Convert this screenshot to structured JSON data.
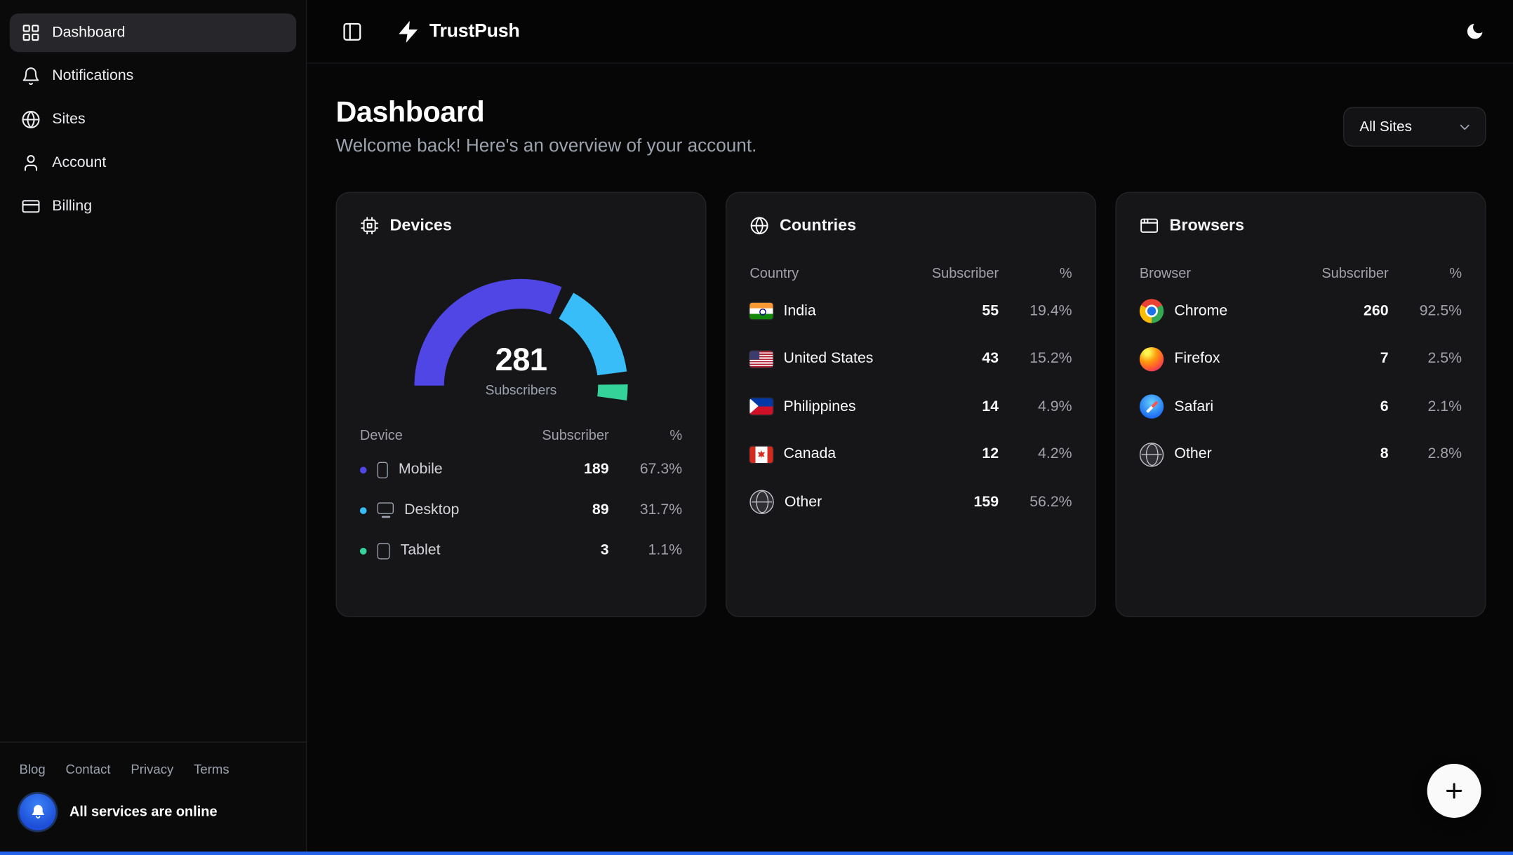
{
  "topbar": {
    "brand": "TrustPush"
  },
  "sidebar": {
    "items": [
      {
        "label": "Dashboard",
        "icon": "dashboard-grid-icon",
        "active": true
      },
      {
        "label": "Notifications",
        "icon": "bell-icon",
        "active": false
      },
      {
        "label": "Sites",
        "icon": "globe-icon",
        "active": false
      },
      {
        "label": "Account",
        "icon": "user-icon",
        "active": false
      },
      {
        "label": "Billing",
        "icon": "credit-card-icon",
        "active": false
      }
    ],
    "footer_links": [
      {
        "label": "Blog"
      },
      {
        "label": "Contact"
      },
      {
        "label": "Privacy"
      },
      {
        "label": "Terms"
      }
    ],
    "status": {
      "text": "All services are online",
      "icon": "bell-badge-icon"
    }
  },
  "page": {
    "title": "Dashboard",
    "subtitle": "Welcome back! Here's an overview of your account.",
    "site_filter": {
      "value": "All Sites",
      "icon": "chevron-down-icon"
    }
  },
  "cards": {
    "devices": {
      "title": "Devices",
      "icon": "cpu-icon",
      "headers": {
        "name": "Device",
        "subscribers": "Subscriber",
        "percent": "%"
      },
      "rows": [
        {
          "name": "Mobile",
          "subscribers": "189",
          "percent": "67.3%",
          "color": "#4f46e5",
          "icon": "dev-mobile"
        },
        {
          "name": "Desktop",
          "subscribers": "89",
          "percent": "31.7%",
          "color": "#38bdf8",
          "icon": "dev-monitor"
        },
        {
          "name": "Tablet",
          "subscribers": "3",
          "percent": "1.1%",
          "color": "#34d399",
          "icon": "dev-tablet"
        }
      ]
    },
    "countries": {
      "title": "Countries",
      "icon": "globe-icon",
      "headers": {
        "name": "Country",
        "subscribers": "Subscriber",
        "percent": "%"
      },
      "rows": [
        {
          "name": "India",
          "subscribers": "55",
          "percent": "19.4%",
          "icon": "flag-in"
        },
        {
          "name": "United States",
          "subscribers": "43",
          "percent": "15.2%",
          "icon": "flag-us"
        },
        {
          "name": "Philippines",
          "subscribers": "14",
          "percent": "4.9%",
          "icon": "flag-ph"
        },
        {
          "name": "Canada",
          "subscribers": "12",
          "percent": "4.2%",
          "icon": "flag-ca"
        },
        {
          "name": "Other",
          "subscribers": "159",
          "percent": "56.2%",
          "icon": "icon-globe-gray"
        }
      ]
    },
    "browsers": {
      "title": "Browsers",
      "icon": "app-window-icon",
      "headers": {
        "name": "Browser",
        "subscribers": "Subscriber",
        "percent": "%"
      },
      "rows": [
        {
          "name": "Chrome",
          "subscribers": "260",
          "percent": "92.5%",
          "icon": "br-chrome"
        },
        {
          "name": "Firefox",
          "subscribers": "7",
          "percent": "2.5%",
          "icon": "br-firefox"
        },
        {
          "name": "Safari",
          "subscribers": "6",
          "percent": "2.1%",
          "icon": "br-safari"
        },
        {
          "name": "Other",
          "subscribers": "8",
          "percent": "2.8%",
          "icon": "icon-globe-gray"
        }
      ]
    }
  },
  "chart_data": {
    "type": "gauge",
    "title": "Devices subscribers by device type",
    "total": "281",
    "total_label": "Subscribers",
    "arc_span_degrees": 180,
    "segments": [
      {
        "label": "Mobile",
        "value": 189,
        "percent": 67.3,
        "color": "#4f46e5"
      },
      {
        "label": "Desktop",
        "value": 89,
        "percent": 31.7,
        "color": "#38bdf8"
      },
      {
        "label": "Tablet",
        "value": 3,
        "percent": 1.1,
        "color": "#34d399"
      }
    ]
  },
  "fab": {
    "label": "+"
  },
  "colors": {
    "accent_blue": "#2563eb",
    "indigo": "#4f46e5",
    "sky": "#38bdf8",
    "green": "#34d399",
    "card_bg": "#161619"
  }
}
